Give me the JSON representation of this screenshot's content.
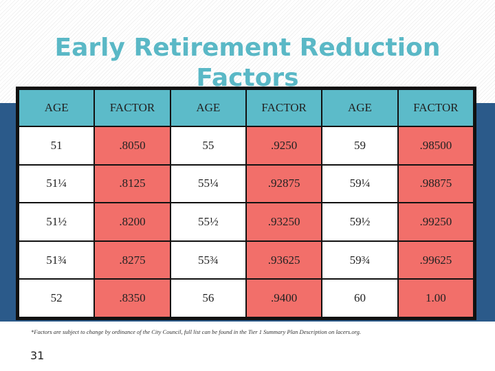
{
  "title": "Early Retirement Reduction Factors",
  "table": {
    "headers": [
      "AGE",
      "FACTOR",
      "AGE",
      "FACTOR",
      "AGE",
      "FACTOR"
    ],
    "rows": [
      [
        "51",
        ".8050",
        "55",
        ".9250",
        "59",
        ".98500"
      ],
      [
        "51¼",
        ".8125",
        "55¼",
        ".92875",
        "59¼",
        ".98875"
      ],
      [
        "51½",
        ".8200",
        "55½",
        ".93250",
        "59½",
        ".99250"
      ],
      [
        "51¾",
        ".8275",
        "55¾",
        ".93625",
        "59¾",
        ".99625"
      ],
      [
        "52",
        ".8350",
        "56",
        ".9400",
        "60",
        "1.00"
      ]
    ]
  },
  "colors": {
    "title": "#5ab8c6",
    "header_fill": "#5cbbc9",
    "factor_fill": "#f26f6a",
    "band": "#2b5a8a"
  },
  "footnote": "*Factors are subject to change by ordinance of the City Council, full list can be found in the Tier 1 Summary Plan Description on lacers.org.",
  "page_number": "31"
}
